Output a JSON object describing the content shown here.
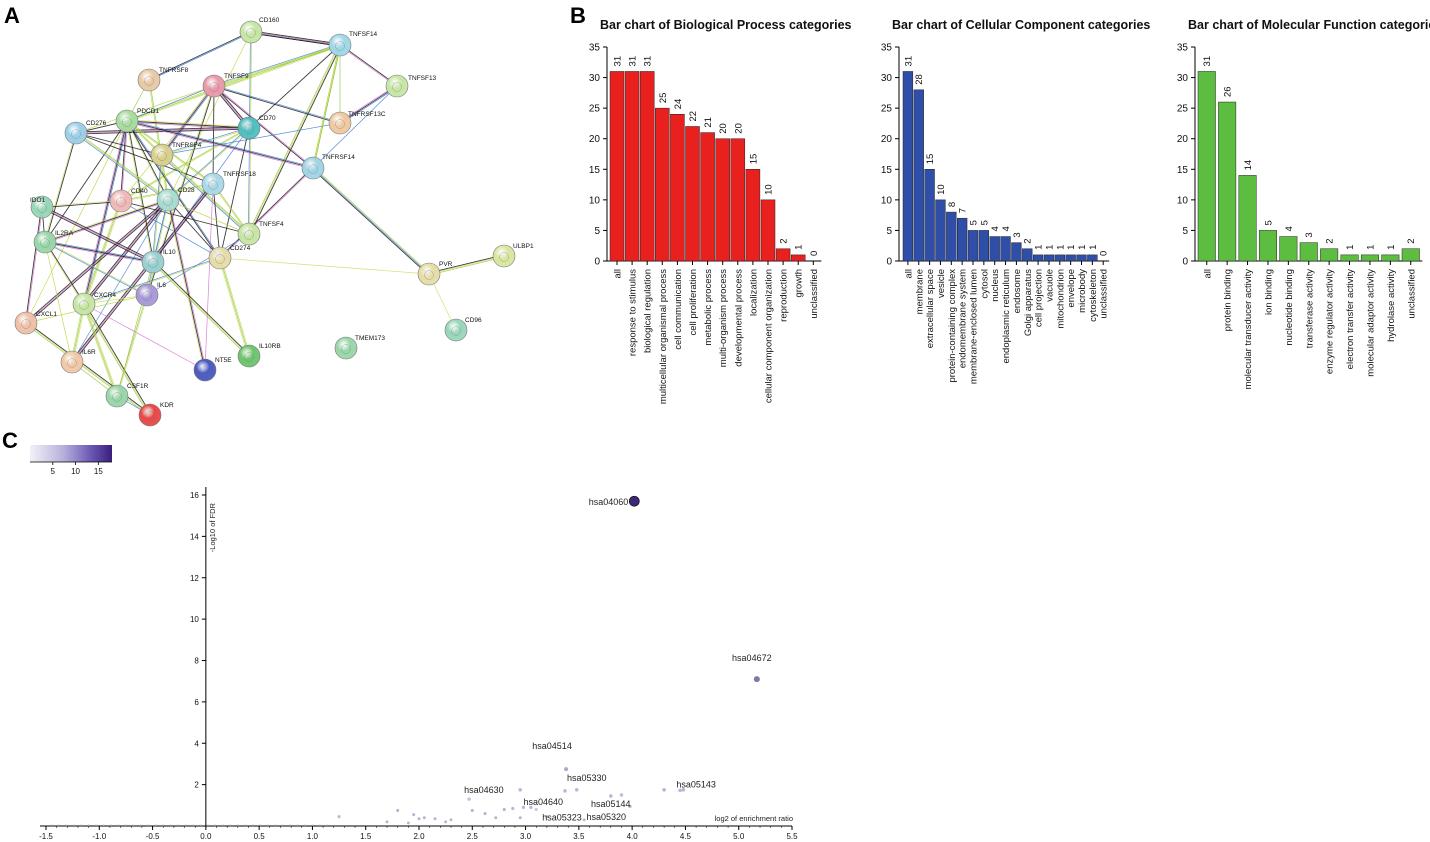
{
  "panels": {
    "a": "A",
    "b": "B",
    "c": "C"
  },
  "network": {
    "nodes": [
      {
        "id": "CD160",
        "color": "#c6e6a4"
      },
      {
        "id": "TNFSF14",
        "color": "#9fd8e6"
      },
      {
        "id": "TNFSF13",
        "color": "#c6e6a4"
      },
      {
        "id": "TNFRSF8",
        "color": "#e8c9a6"
      },
      {
        "id": "TNFSF9",
        "color": "#e89aaa"
      },
      {
        "id": "TNFRSF13C",
        "color": "#f0c8a0"
      },
      {
        "id": "CD70",
        "color": "#4fbfbf"
      },
      {
        "id": "PDCD1",
        "color": "#a8dca0"
      },
      {
        "id": "CD276",
        "color": "#9ccfe8"
      },
      {
        "id": "TNFRSF4",
        "color": "#d8cf8a"
      },
      {
        "id": "TNFRSF14",
        "color": "#a0d4e6"
      },
      {
        "id": "TNFRSF18",
        "color": "#a8d8e8"
      },
      {
        "id": "CD40",
        "color": "#f0b8b8"
      },
      {
        "id": "CD28",
        "color": "#a8dcd0"
      },
      {
        "id": "IDO1",
        "color": "#98d6b8"
      },
      {
        "id": "TNFSF4",
        "color": "#c6e6a4"
      },
      {
        "id": "IL2RA",
        "color": "#98d6a8"
      },
      {
        "id": "IL10",
        "color": "#98cfcf"
      },
      {
        "id": "CD274",
        "color": "#e6dca8"
      },
      {
        "id": "PVR",
        "color": "#e6dca8"
      },
      {
        "id": "ULBP1",
        "color": "#d8e6a0"
      },
      {
        "id": "CXCR4",
        "color": "#c6e6a4"
      },
      {
        "id": "IL6",
        "color": "#a898d8"
      },
      {
        "id": "CXCL1",
        "color": "#f0c0a8"
      },
      {
        "id": "CD96",
        "color": "#98d6b8"
      },
      {
        "id": "TMEM173",
        "color": "#98d6a8"
      },
      {
        "id": "IL6R",
        "color": "#f0c8a8"
      },
      {
        "id": "IL10RB",
        "color": "#6ec46e"
      },
      {
        "id": "NT5E",
        "color": "#4a5ac0"
      },
      {
        "id": "CSF1R",
        "color": "#98d6a8"
      },
      {
        "id": "KDR",
        "color": "#e84848"
      }
    ]
  },
  "chart_data": [
    {
      "type": "bar",
      "title": "Bar chart of Biological Process categories",
      "color": "#e8201e",
      "categories": [
        "all",
        "response to stimulus",
        "biological regulation",
        "multicellular organismal process",
        "cell communication",
        "cell proliferation",
        "metabolic process",
        "multi-organism process",
        "developmental process",
        "localization",
        "cellular component organization",
        "reproduction",
        "growth",
        "unclassified"
      ],
      "values": [
        31,
        31,
        31,
        25,
        24,
        22,
        21,
        20,
        20,
        15,
        10,
        2,
        1,
        0
      ],
      "ylim": [
        0,
        35
      ],
      "yticks": [
        "0",
        "5",
        "10",
        "15",
        "20",
        "25",
        "30",
        "35"
      ]
    },
    {
      "type": "bar",
      "title": "Bar chart of Cellular Component categories",
      "color": "#2f4ea8",
      "categories": [
        "all",
        "membrane",
        "extracellular space",
        "vesicle",
        "protein-containing complex",
        "endomembrane system",
        "membrane-enclosed lumen",
        "cytosol",
        "nucleus",
        "endoplasmic reticulum",
        "endosome",
        "Golgi apparatus",
        "cell projection",
        "vacuole",
        "mitochondrion",
        "envelope",
        "microbody",
        "cytoskeleton",
        "unclassified"
      ],
      "values": [
        31,
        28,
        15,
        10,
        8,
        7,
        5,
        5,
        4,
        4,
        3,
        2,
        1,
        1,
        1,
        1,
        1,
        1,
        0
      ],
      "ylim": [
        0,
        35
      ],
      "yticks": [
        "0",
        "5",
        "10",
        "15",
        "20",
        "25",
        "30",
        "35"
      ]
    },
    {
      "type": "bar",
      "title": "Bar chart of Molecular Function categories",
      "color": "#5cbd40",
      "categories": [
        "all",
        "protein binding",
        "molecular transducer activity",
        "ion binding",
        "nucleotide binding",
        "transferase activity",
        "enzyme regulator activity",
        "electron transfer activity",
        "molecular adaptor activity",
        "hydrolase activity",
        "unclassified"
      ],
      "values": [
        31,
        26,
        14,
        5,
        4,
        3,
        2,
        1,
        1,
        1,
        2
      ],
      "ylim": [
        0,
        35
      ],
      "yticks": [
        "0",
        "5",
        "10",
        "15",
        "20",
        "25",
        "30",
        "35"
      ]
    },
    {
      "type": "scatter",
      "xlabel": "log2 of enrichment ratio",
      "ylabel": "-Log10 of FDR",
      "xlim": [
        -1.5,
        5.5
      ],
      "ylim": [
        0,
        16
      ],
      "xticks": [
        "-1.5",
        "-1.0",
        "-0.5",
        "0.0",
        "0.5",
        "1.0",
        "1.5",
        "2.0",
        "2.5",
        "3.0",
        "3.5",
        "4.0",
        "4.5",
        "5.0",
        "5.5"
      ],
      "yticks": [
        "2",
        "4",
        "6",
        "8",
        "10",
        "12",
        "14",
        "16"
      ],
      "colorbar": {
        "ticks": [
          "5",
          "10",
          "15"
        ],
        "range": [
          0,
          18
        ]
      },
      "labeled_points": [
        {
          "label": "hsa04060",
          "x": 4.02,
          "y": 15.7
        },
        {
          "label": "hsa04672",
          "x": 5.17,
          "y": 7.1
        },
        {
          "label": "hsa04514",
          "x": 3.38,
          "y": 2.75
        },
        {
          "label": "hsa05330",
          "x": 3.48,
          "y": 1.75
        },
        {
          "label": "hsa05144",
          "x": 3.37,
          "y": 1.7
        },
        {
          "label": "hsa05143",
          "x": 4.45,
          "y": 1.72
        },
        {
          "label": "hsa04630",
          "x": 2.47,
          "y": 1.3
        },
        {
          "label": "hsa04640",
          "x": 2.95,
          "y": 1.75
        },
        {
          "label": "hsa05323",
          "x": 3.1,
          "y": 0.8
        },
        {
          "label": "hsa05320",
          "x": 3.9,
          "y": 1.5
        }
      ],
      "other_points": [
        {
          "x": 1.25,
          "y": 0.45
        },
        {
          "x": 1.8,
          "y": 0.75
        },
        {
          "x": 1.95,
          "y": 0.55
        },
        {
          "x": 2.0,
          "y": 0.35
        },
        {
          "x": 2.05,
          "y": 0.4
        },
        {
          "x": 2.15,
          "y": 0.35
        },
        {
          "x": 2.3,
          "y": 0.3
        },
        {
          "x": 2.5,
          "y": 0.75
        },
        {
          "x": 2.62,
          "y": 0.6
        },
        {
          "x": 2.72,
          "y": 0.4
        },
        {
          "x": 2.8,
          "y": 0.8
        },
        {
          "x": 2.88,
          "y": 0.85
        },
        {
          "x": 2.98,
          "y": 0.9
        },
        {
          "x": 2.95,
          "y": 0.4
        },
        {
          "x": 3.05,
          "y": 0.9
        },
        {
          "x": 3.2,
          "y": 0.45
        },
        {
          "x": 3.8,
          "y": 1.45
        },
        {
          "x": 3.98,
          "y": 0.95
        },
        {
          "x": 4.3,
          "y": 1.75
        },
        {
          "x": 4.48,
          "y": 1.75
        },
        {
          "x": 3.55,
          "y": 0.3
        },
        {
          "x": 1.7,
          "y": 0.2
        },
        {
          "x": 2.25,
          "y": 0.2
        },
        {
          "x": 1.9,
          "y": 0.15
        }
      ]
    }
  ]
}
